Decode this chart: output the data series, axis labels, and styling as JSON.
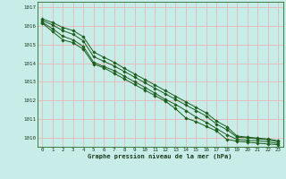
{
  "title": "Graphe pression niveau de la mer (hPa)",
  "bg_color": "#c8ece8",
  "grid_color": "#e8b8b8",
  "line_color": "#1a5c1a",
  "xlim": [
    -0.5,
    23.5
  ],
  "ylim": [
    1009.5,
    1017.3
  ],
  "yticks": [
    1010,
    1011,
    1012,
    1013,
    1014,
    1015,
    1016,
    1017
  ],
  "xticks": [
    0,
    1,
    2,
    3,
    4,
    5,
    6,
    7,
    8,
    9,
    10,
    11,
    12,
    13,
    14,
    15,
    16,
    17,
    18,
    19,
    20,
    21,
    22,
    23
  ],
  "series": [
    [
      1016.15,
      1015.7,
      1015.25,
      1015.1,
      1014.75,
      1013.95,
      1013.75,
      1013.45,
      1013.15,
      1012.85,
      1012.55,
      1012.25,
      1011.95,
      1011.55,
      1011.05,
      1010.85,
      1010.6,
      1010.35,
      1009.9,
      1009.8,
      1009.75,
      1009.7,
      1009.65,
      1009.62
    ],
    [
      1016.2,
      1015.85,
      1015.45,
      1015.25,
      1014.9,
      1014.05,
      1013.82,
      1013.6,
      1013.3,
      1013.0,
      1012.7,
      1012.38,
      1012.05,
      1011.78,
      1011.45,
      1011.1,
      1010.82,
      1010.48,
      1010.15,
      1009.9,
      1009.85,
      1009.82,
      1009.77,
      1009.68
    ],
    [
      1016.3,
      1016.05,
      1015.75,
      1015.55,
      1015.2,
      1014.35,
      1014.1,
      1013.85,
      1013.55,
      1013.25,
      1012.95,
      1012.65,
      1012.35,
      1012.05,
      1011.75,
      1011.45,
      1011.15,
      1010.72,
      1010.42,
      1010.02,
      1009.98,
      1009.93,
      1009.88,
      1009.78
    ],
    [
      1016.38,
      1016.18,
      1015.92,
      1015.75,
      1015.42,
      1014.6,
      1014.32,
      1014.05,
      1013.72,
      1013.42,
      1013.12,
      1012.82,
      1012.52,
      1012.22,
      1011.92,
      1011.62,
      1011.32,
      1010.88,
      1010.58,
      1010.08,
      1010.02,
      1009.97,
      1009.92,
      1009.82
    ]
  ]
}
